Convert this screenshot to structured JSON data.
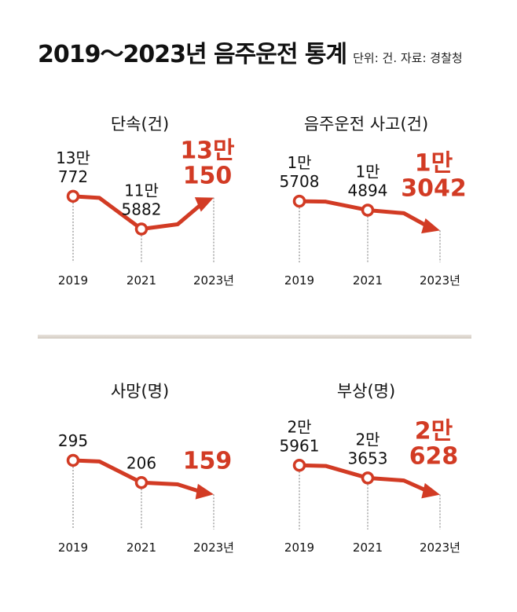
{
  "title": "2019～2023년 음주운전 통계",
  "note": "단위: 건. 자료: 경찰청",
  "colors": {
    "accent": "#d23b24",
    "text": "#111111",
    "guide": "#777777"
  },
  "chart_data": [
    {
      "type": "line",
      "title": "단속(건)",
      "x": [
        "2019",
        "2021",
        "2023년"
      ],
      "values": [
        130772,
        115882,
        130150
      ],
      "value_labels": [
        [
          "13만",
          "772"
        ],
        [
          "11만",
          "5882"
        ],
        [
          "13만",
          "150"
        ]
      ],
      "ylim": [
        110000,
        135000
      ]
    },
    {
      "type": "line",
      "title": "음주운전 사고(건)",
      "x": [
        "2019",
        "2021",
        "2023년"
      ],
      "values": [
        15708,
        14894,
        13042
      ],
      "value_labels": [
        [
          "1만",
          "5708"
        ],
        [
          "1만",
          "4894"
        ],
        [
          "1만",
          "3042"
        ]
      ],
      "ylim": [
        12000,
        17000
      ]
    },
    {
      "type": "line",
      "title": "사망(명)",
      "x": [
        "2019",
        "2021",
        "2023년"
      ],
      "values": [
        295,
        206,
        159
      ],
      "value_labels": [
        [
          "295"
        ],
        [
          "206"
        ],
        [
          "159"
        ]
      ],
      "ylim": [
        100,
        320
      ]
    },
    {
      "type": "line",
      "title": "부상(명)",
      "x": [
        "2019",
        "2021",
        "2023년"
      ],
      "values": [
        25961,
        23653,
        20628
      ],
      "value_labels": [
        [
          "2만",
          "5961"
        ],
        [
          "2만",
          "3653"
        ],
        [
          "2만",
          "628"
        ]
      ],
      "ylim": [
        18000,
        28000
      ]
    }
  ]
}
